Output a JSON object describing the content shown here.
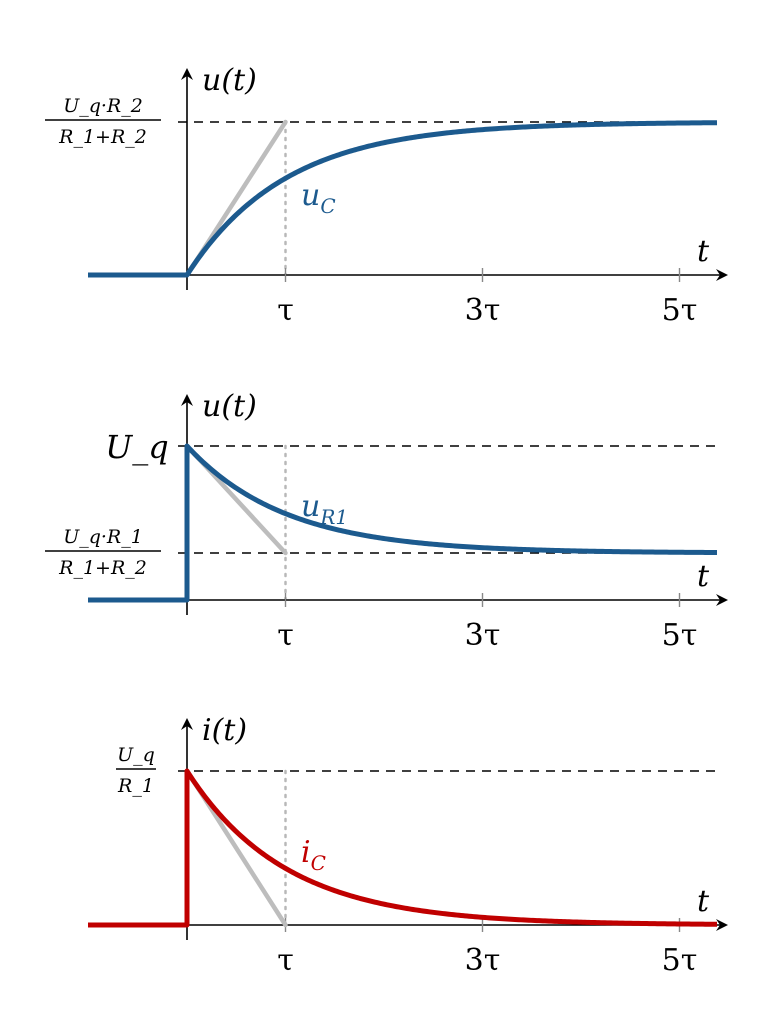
{
  "colors": {
    "blue": "#1c5a8e",
    "red": "#c00000",
    "tangent": "#bdbdbd",
    "dotted": "#b8b8b8"
  },
  "chart_data": [
    {
      "type": "line",
      "ylabel": "u(t)",
      "xlabel": "t",
      "x_ticks": [
        "τ",
        "3τ",
        "5τ"
      ],
      "y_label_top": {
        "numerator": "U_q·R_2",
        "denominator": "R_1+R_2"
      },
      "series": [
        {
          "name": "u_C",
          "label_main": "u",
          "label_sub": "C",
          "color": "#1c5a8e",
          "formula": "charging: 0 for t<0, 1-exp(-t/τ) for t≥0",
          "x_tau": [
            -1,
            0,
            0.5,
            1,
            2,
            3,
            4,
            5,
            5.4
          ],
          "y_norm": [
            0,
            0,
            0.393,
            0.632,
            0.865,
            0.95,
            0.982,
            0.993,
            0.995
          ]
        }
      ],
      "tangent": "from (0, 0) to (τ, final value)"
    },
    {
      "type": "line",
      "ylabel": "u(t)",
      "xlabel": "t",
      "x_ticks": [
        "τ",
        "3τ",
        "5τ"
      ],
      "y_label_top": "U_q",
      "y_label_mid": {
        "numerator": "U_q·R_1",
        "denominator": "R_1+R_2"
      },
      "series": [
        {
          "name": "u_R1",
          "label_main": "u",
          "label_sub": "R1",
          "color": "#1c5a8e",
          "formula": "0 for t<0, jump to U_q at t=0, then decays to U_q·R_1/(R_1+R_2)",
          "x_tau": [
            -1,
            0,
            0,
            0.5,
            1,
            2,
            3,
            4,
            5,
            5.4
          ],
          "y_norm": [
            -0.43,
            -0.43,
            1,
            0.607,
            0.368,
            0.135,
            0.05,
            0.018,
            0.007,
            0.005
          ]
        }
      ],
      "tangent": "from (0, U_q) to (τ, U_q·R_1/(R_1+R_2))"
    },
    {
      "type": "line",
      "ylabel": "i(t)",
      "xlabel": "t",
      "x_ticks": [
        "τ",
        "3τ",
        "5τ"
      ],
      "y_label_top": {
        "numerator": "U_q",
        "denominator": "R_1"
      },
      "series": [
        {
          "name": "i_C",
          "label_main": "i",
          "label_sub": "C",
          "color": "#c00000",
          "formula": "0 for t<0, jump to U_q/R_1 at t=0, then exp(-t/τ)",
          "x_tau": [
            -1,
            0,
            0,
            0.5,
            1,
            2,
            3,
            4,
            5,
            5.4
          ],
          "y_norm": [
            0,
            0,
            1,
            0.607,
            0.368,
            0.135,
            0.05,
            0.018,
            0.007,
            0.005
          ]
        }
      ],
      "tangent": "from (0, U_q/R_1) to (τ, 0)"
    }
  ]
}
